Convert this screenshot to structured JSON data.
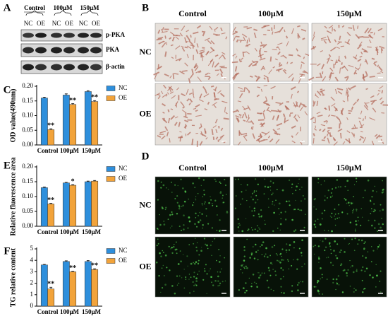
{
  "figure": {
    "panels": [
      "A",
      "B",
      "C",
      "D",
      "E",
      "F"
    ],
    "blot": {
      "groups": [
        "Control",
        "100μM",
        "150μM"
      ],
      "lanes": [
        "NC",
        "OE",
        "NC",
        "OE",
        "NC",
        "OE"
      ],
      "proteins": [
        "p-PKA",
        "PKA",
        "β-actin"
      ]
    },
    "staining": {
      "columns": [
        "Control",
        "100μM",
        "150μM"
      ],
      "rows": [
        "NC",
        "OE"
      ]
    },
    "fluorescence": {
      "columns": [
        "Control",
        "100μM",
        "150μM"
      ],
      "rows": [
        "NC",
        "OE"
      ]
    }
  },
  "chart_data": [
    {
      "type": "bar",
      "y_label": "OD value(490nm)",
      "categories": [
        "Control",
        "100μM",
        "150μM"
      ],
      "series": [
        {
          "name": "NC",
          "color": "#2e8fdc",
          "values": [
            0.16,
            0.17,
            0.182
          ],
          "errors": [
            0.003,
            0.004,
            0.003
          ]
        },
        {
          "name": "OE",
          "color": "#f2a33a",
          "values": [
            0.052,
            0.138,
            0.148
          ],
          "errors": [
            0.003,
            0.003,
            0.003
          ],
          "annotations": [
            "**",
            "**",
            "**"
          ]
        }
      ],
      "ylim": [
        0,
        0.2
      ],
      "yticks": [
        {
          "value": 0,
          "label": "0.00"
        },
        {
          "value": 0.05,
          "label": "0.05"
        },
        {
          "value": 0.1,
          "label": "0.10"
        },
        {
          "value": 0.15,
          "label": "0.15"
        },
        {
          "value": 0.2,
          "label": "0.20"
        }
      ],
      "legend": "right"
    },
    {
      "type": "bar",
      "y_label": "Relative fluorescence area",
      "categories": [
        "Control",
        "100μM",
        "150μM"
      ],
      "series": [
        {
          "name": "NC",
          "color": "#2e8fdc",
          "values": [
            0.13,
            0.146,
            0.15
          ],
          "errors": [
            0.002,
            0.002,
            0.002
          ]
        },
        {
          "name": "OE",
          "color": "#f2a33a",
          "values": [
            0.075,
            0.138,
            0.152
          ],
          "errors": [
            0.002,
            0.002,
            0.002
          ],
          "annotations": [
            "**",
            "*",
            null
          ]
        }
      ],
      "ylim": [
        0,
        0.2
      ],
      "yticks": [
        {
          "value": 0,
          "label": "0.00"
        },
        {
          "value": 0.05,
          "label": "0.05"
        },
        {
          "value": 0.1,
          "label": "0.10"
        },
        {
          "value": 0.15,
          "label": "0.15"
        },
        {
          "value": 0.2,
          "label": "0.20"
        }
      ],
      "legend": "right"
    },
    {
      "type": "bar",
      "y_label": "TG relative content",
      "categories": [
        "Control",
        "100μM",
        "150μM"
      ],
      "series": [
        {
          "name": "NC",
          "color": "#2e8fdc",
          "values": [
            3.6,
            3.9,
            3.9
          ],
          "errors": [
            0.05,
            0.06,
            0.08
          ]
        },
        {
          "name": "OE",
          "color": "#f2a33a",
          "values": [
            1.5,
            3.0,
            3.2
          ],
          "errors": [
            0.15,
            0.05,
            0.06
          ],
          "annotations": [
            "**",
            "**",
            "**"
          ]
        }
      ],
      "ylim": [
        0,
        5
      ],
      "yticks": [
        0,
        1,
        2,
        3,
        4,
        5
      ],
      "legend": "right"
    }
  ]
}
